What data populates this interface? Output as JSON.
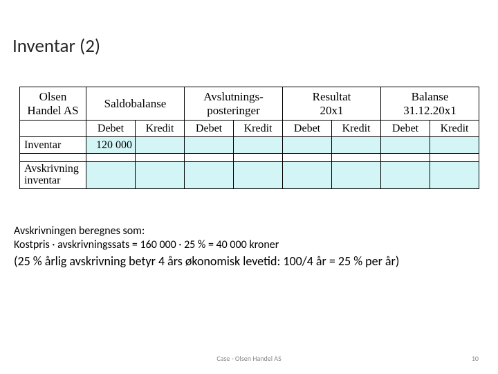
{
  "title": "Inventar (2)",
  "table": {
    "company": "Olsen\nHandel AS",
    "groups": [
      {
        "label": "Saldobalanse"
      },
      {
        "label": "Avslutnings-\nposteringer"
      },
      {
        "label": "Resultat\n20x1"
      },
      {
        "label": "Balanse\n31.12.20x1"
      }
    ],
    "sub_debet": "Debet",
    "sub_kredit": "Kredit",
    "rows": [
      {
        "label": "Inventar",
        "cells": [
          "120 000",
          "",
          "",
          "",
          "",
          "",
          "",
          ""
        ]
      },
      {
        "label": "Avskrivning\ninventar",
        "cells": [
          "",
          "",
          "",
          "",
          "",
          "",
          "",
          ""
        ]
      }
    ],
    "colors": {
      "cell_bg": "#d3f5f5",
      "border": "#000000",
      "header_bg": "#ffffff"
    }
  },
  "body": {
    "line1": "Avskrivningen beregnes som:",
    "line2": "Kostpris · avskrivningssats = 160 000 · 25 % = 40 000 kroner",
    "line3": "(25 % årlig avskrivning betyr 4 års økonomisk levetid: 100/4 år = 25 % per år)"
  },
  "footer": {
    "center": "Case - Olsen Handel AS",
    "page": "10"
  }
}
